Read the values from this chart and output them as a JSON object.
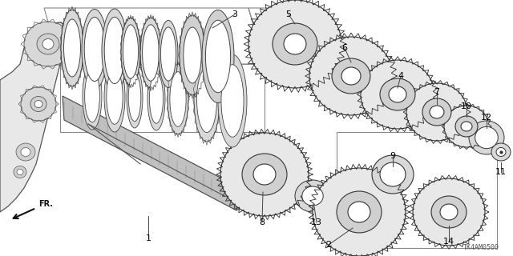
{
  "background_color": "#ffffff",
  "diagram_id": "TK4AM0500",
  "fr_label": "FR.",
  "label_fontsize": 8,
  "label_color": "#000000",
  "line_color": "#444444",
  "gear_fill": "#e8e8e8",
  "gear_edge": "#333333",
  "synchro_fill": "#dddddd",
  "housing_fill": "#e0e0e0",
  "shaft_fill": "#c8c8c8"
}
